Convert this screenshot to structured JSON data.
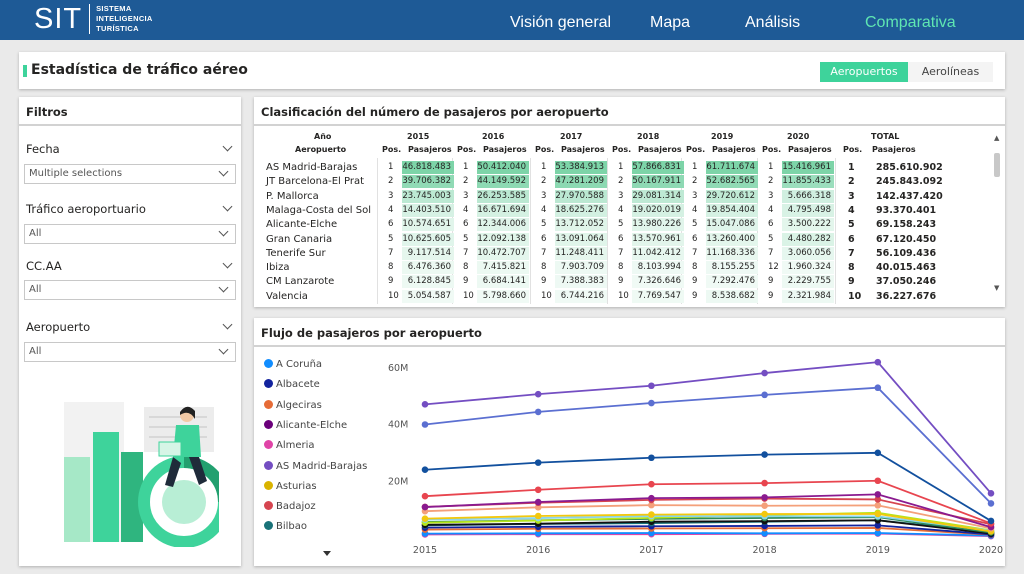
{
  "header": {
    "logo_main": "SIT",
    "logo_line1": "SISTEMA",
    "logo_line2": "INTELIGENCIA",
    "logo_line3": "TURÍSTICA",
    "nav": [
      "Visión general",
      "Mapa",
      "Análisis",
      "Comparativa"
    ],
    "active_nav": "Comparativa",
    "colors": {
      "bar": "#1e5a96",
      "active": "#5fe6b2"
    }
  },
  "page": {
    "title": "Estadística de tráfico aéreo",
    "toggle_on": "Aeropuertos",
    "toggle_off": "Aerolíneas",
    "accent_color": "#3ed39b"
  },
  "filters": {
    "title": "Filtros",
    "fecha_label": "Fecha",
    "fecha_value": "Multiple selections",
    "trafico_label": "Tráfico aeroportuario",
    "trafico_value": "All",
    "ccaa_label": "CC.AA",
    "ccaa_value": "All",
    "aeropuerto_label": "Aeropuerto",
    "aeropuerto_value": "All"
  },
  "table": {
    "title": "Clasificación del número de pasajeros por aeropuerto",
    "row_header_top": "Año",
    "row_header_bottom": "Aeropuerto",
    "pos_label": "Pos.",
    "pax_label": "Pasajeros",
    "total_label": "TOTAL",
    "years": [
      "2015",
      "2016",
      "2017",
      "2018",
      "2019",
      "2020"
    ],
    "rows": [
      {
        "name": "AS Madrid-Barajas",
        "pos": [
          1,
          1,
          1,
          1,
          1,
          1
        ],
        "pax": [
          "46.818.483",
          "50.412.040",
          "53.384.913",
          "57.866.831",
          "61.711.674",
          "15.416.961"
        ],
        "total_pos": 1,
        "total": "285.610.902"
      },
      {
        "name": "JT Barcelona-El Prat",
        "pos": [
          2,
          2,
          2,
          2,
          2,
          2
        ],
        "pax": [
          "39.706.382",
          "44.149.592",
          "47.281.209",
          "50.167.911",
          "52.682.565",
          "11.855.433"
        ],
        "total_pos": 2,
        "total": "245.843.092"
      },
      {
        "name": "P. Mallorca",
        "pos": [
          3,
          3,
          3,
          3,
          3,
          3
        ],
        "pax": [
          "23.745.003",
          "26.253.585",
          "27.970.588",
          "29.081.314",
          "29.720.612",
          "5.666.318"
        ],
        "total_pos": 3,
        "total": "142.437.420"
      },
      {
        "name": "Malaga-Costa del Sol",
        "pos": [
          4,
          4,
          4,
          4,
          4,
          4
        ],
        "pax": [
          "14.403.510",
          "16.671.694",
          "18.625.276",
          "19.020.019",
          "19.854.404",
          "4.795.498"
        ],
        "total_pos": 4,
        "total": "93.370.401"
      },
      {
        "name": "Alicante-Elche",
        "pos": [
          6,
          6,
          5,
          5,
          5,
          6
        ],
        "pax": [
          "10.574.651",
          "12.344.006",
          "13.712.052",
          "13.980.226",
          "15.047.086",
          "3.500.222"
        ],
        "total_pos": 5,
        "total": "69.158.243"
      },
      {
        "name": "Gran Canaria",
        "pos": [
          5,
          5,
          6,
          6,
          6,
          5
        ],
        "pax": [
          "10.625.605",
          "12.092.138",
          "13.091.064",
          "13.570.961",
          "13.260.400",
          "4.480.282"
        ],
        "total_pos": 6,
        "total": "67.120.450"
      },
      {
        "name": "Tenerife Sur",
        "pos": [
          7,
          7,
          7,
          7,
          7,
          7
        ],
        "pax": [
          "9.117.514",
          "10.472.707",
          "11.248.411",
          "11.042.412",
          "11.168.336",
          "3.060.056"
        ],
        "total_pos": 7,
        "total": "56.109.436"
      },
      {
        "name": "Ibiza",
        "pos": [
          8,
          8,
          8,
          8,
          8,
          12
        ],
        "pax": [
          "6.476.360",
          "7.415.821",
          "7.903.709",
          "8.103.994",
          "8.155.255",
          "1.960.324"
        ],
        "total_pos": 8,
        "total": "40.015.463"
      },
      {
        "name": "CM Lanzarote",
        "pos": [
          9,
          9,
          9,
          9,
          9,
          9
        ],
        "pax": [
          "6.128.845",
          "6.684.141",
          "7.388.383",
          "7.326.646",
          "7.292.476",
          "2.229.755"
        ],
        "total_pos": 9,
        "total": "37.050.246"
      },
      {
        "name": "Valencia",
        "pos": [
          10,
          10,
          10,
          10,
          9,
          9
        ],
        "pax": [
          "5.054.587",
          "5.798.660",
          "6.744.216",
          "7.769.547",
          "8.538.682",
          "2.321.984"
        ],
        "total_pos": 10,
        "total": "36.227.676"
      }
    ]
  },
  "chart_section": {
    "title": "Flujo de pasajeros por aeropuerto"
  },
  "chart_data": {
    "type": "line",
    "x": [
      "2015",
      "2016",
      "2017",
      "2018",
      "2019",
      "2020"
    ],
    "ylim": [
      0,
      66000000
    ],
    "yticks": [
      20000000,
      40000000,
      60000000
    ],
    "ytick_labels": [
      "20M",
      "40M",
      "60M"
    ],
    "legend": [
      "A Coruña",
      "Albacete",
      "Algeciras",
      "Alicante-Elche",
      "Almeria",
      "AS Madrid-Barajas",
      "Asturias",
      "Badajoz",
      "Bilbao"
    ],
    "legend_colors": [
      "#118dff",
      "#12239e",
      "#e66c37",
      "#6b007b",
      "#e044a7",
      "#744ec2",
      "#d9b300",
      "#d64550",
      "#197278"
    ],
    "series": [
      {
        "color": "#744ec2",
        "values": [
          46818483,
          50412040,
          53384913,
          57866831,
          61711674,
          15416961
        ]
      },
      {
        "color": "#5b6fd1",
        "values": [
          39706382,
          44149592,
          47281209,
          50167911,
          52682565,
          11855433
        ]
      },
      {
        "color": "#12509e",
        "values": [
          23745003,
          26253585,
          27970588,
          29081314,
          29720612,
          5666318
        ]
      },
      {
        "color": "#e8454f",
        "values": [
          14403510,
          16671694,
          18625276,
          19020019,
          19854404,
          4795498
        ]
      },
      {
        "color": "#8a1a8f",
        "values": [
          10574651,
          12344006,
          13712052,
          13980226,
          15047086,
          3500222
        ]
      },
      {
        "color": "#d64550",
        "values": [
          10625605,
          12092138,
          13091064,
          13570961,
          13260400,
          4480282
        ]
      },
      {
        "color": "#f4a07a",
        "values": [
          9117514,
          10472707,
          11248411,
          11042412,
          11168336,
          3060056
        ]
      },
      {
        "color": "#f2c80f",
        "values": [
          6476360,
          7415821,
          7903709,
          8103994,
          8155255,
          1960324
        ]
      },
      {
        "color": "#8ad4eb",
        "values": [
          6128845,
          6684141,
          7388383,
          7326646,
          7292476,
          2229755
        ]
      },
      {
        "color": "#b5e61d",
        "values": [
          5054587,
          5798660,
          6744216,
          7769547,
          8538682,
          2321984
        ]
      },
      {
        "color": "#2e8b57",
        "values": [
          5300000,
          5900000,
          6400000,
          6700000,
          7000000,
          1600000
        ]
      },
      {
        "color": "#111111",
        "values": [
          4300000,
          4700000,
          5400000,
          5600000,
          5900000,
          1200000
        ]
      },
      {
        "color": "#197278",
        "values": [
          4100000,
          4600000,
          4900000,
          5400000,
          5900000,
          1800000
        ]
      },
      {
        "color": "#12239e",
        "values": [
          3300000,
          3600000,
          3800000,
          3900000,
          4100000,
          900000
        ]
      },
      {
        "color": "#e66c37",
        "values": [
          2600000,
          2900000,
          3000000,
          3100000,
          3200000,
          800000
        ]
      },
      {
        "color": "#118dff",
        "values": [
          1200000,
          1300000,
          1400000,
          1300000,
          1400000,
          500000
        ]
      },
      {
        "color": "#e044a7",
        "values": [
          900000,
          1000000,
          1000000,
          1100000,
          1200000,
          300000
        ]
      }
    ]
  }
}
